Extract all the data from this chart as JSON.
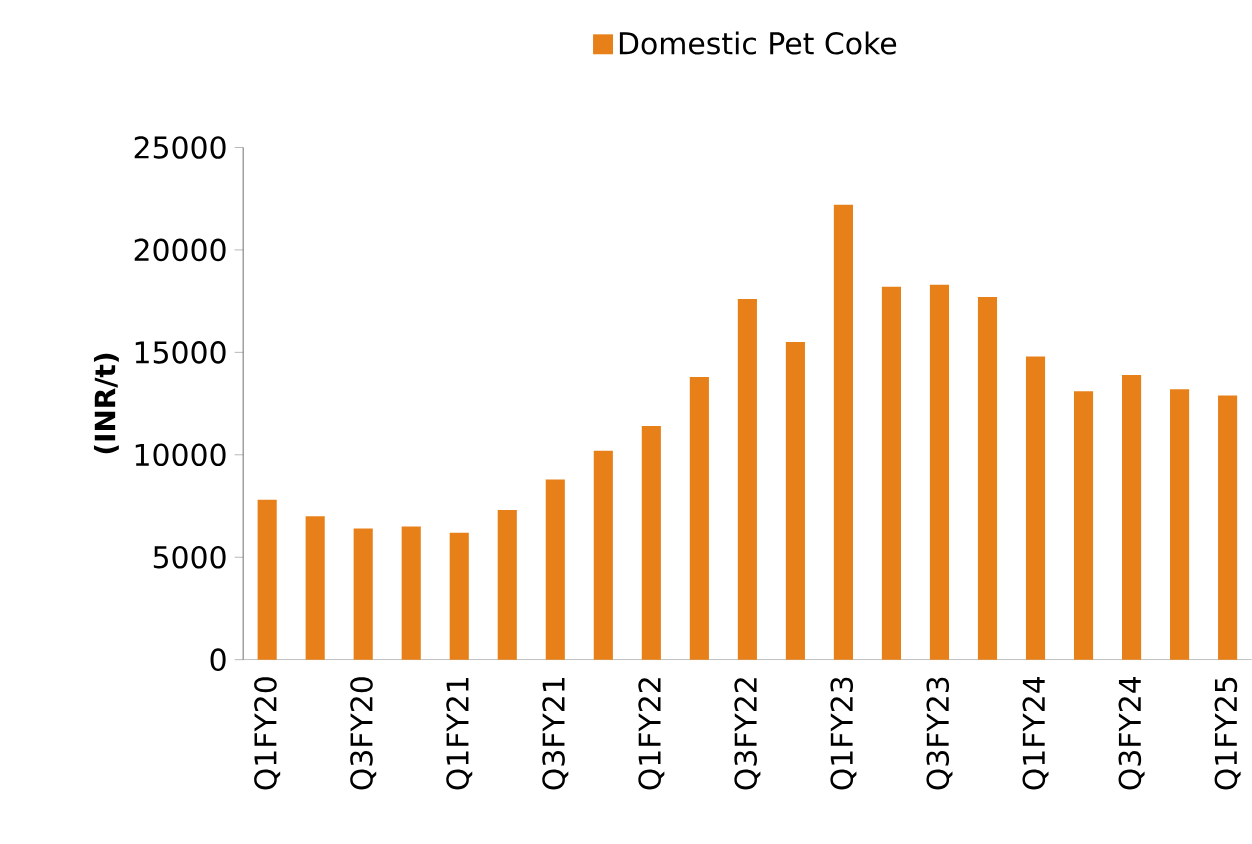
{
  "chart_data": {
    "type": "bar",
    "ylabel": "(INR/t)",
    "categories": [
      "Q1FY20",
      null,
      "Q3FY20",
      null,
      "Q1FY21",
      null,
      "Q3FY21",
      null,
      "Q1FY22",
      null,
      "Q3FY22",
      null,
      "Q1FY23",
      null,
      "Q3FY23",
      null,
      "Q1FY24",
      null,
      "Q3FY24",
      null,
      "Q1FY25"
    ],
    "series": [
      {
        "name": "Domestic Pet Coke",
        "color": "#e8801a",
        "values": [
          7800,
          7000,
          6400,
          6500,
          6200,
          7300,
          8800,
          10200,
          11400,
          13800,
          17600,
          15500,
          22200,
          18200,
          18300,
          17700,
          14800,
          13100,
          13900,
          13200,
          12900
        ]
      }
    ],
    "ylim": [
      0,
      25000
    ],
    "yticks": [
      0,
      5000,
      10000,
      15000,
      20000,
      25000
    ],
    "grid": false,
    "legend": "top"
  }
}
